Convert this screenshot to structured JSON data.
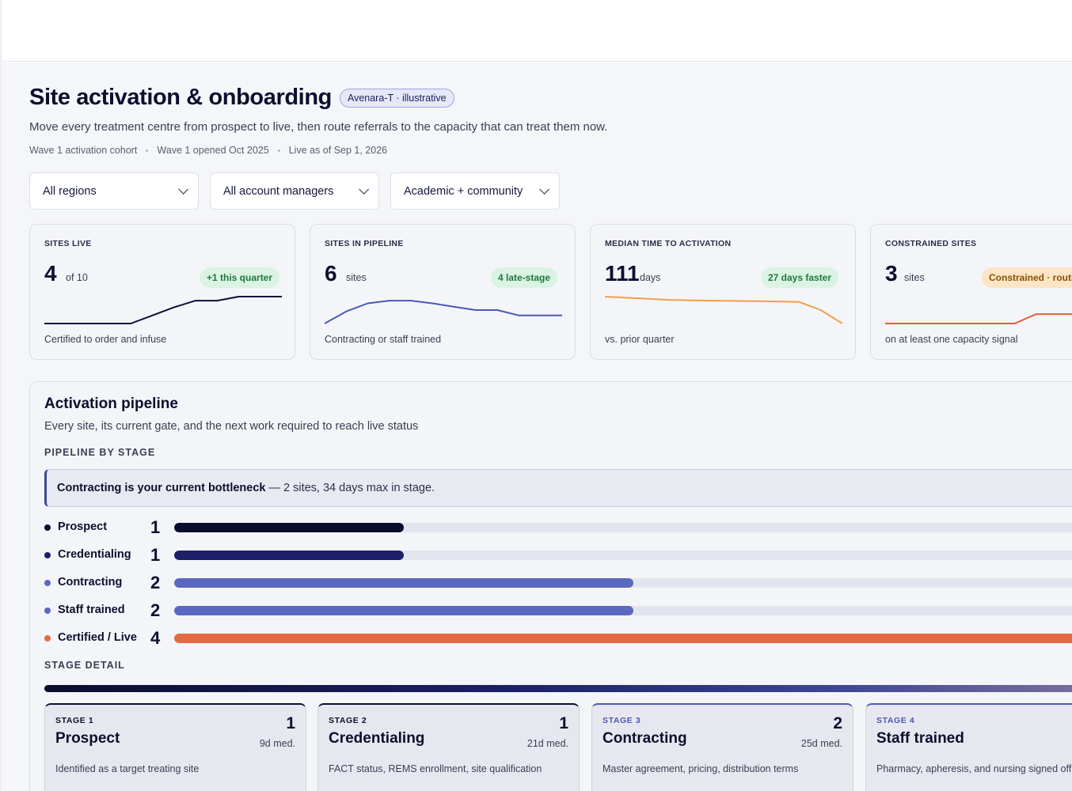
{
  "header": {
    "title": "Site activation & onboarding",
    "badge": "Avenara-T · illustrative",
    "subtitle": "Move every treatment centre from prospect to live, then route referrals to the capacity that can treat them now.",
    "meta": [
      "Wave 1 activation cohort",
      "Wave 1 opened Oct 2025",
      "Live as of Sep 1, 2026"
    ]
  },
  "filters": {
    "region": "All regions",
    "manager": "All account managers",
    "site_type": "Academic + community"
  },
  "kpis": [
    {
      "label": "SITES LIVE",
      "value": "4",
      "unit": "of 10",
      "pill": "+1 this quarter",
      "caption": "Certified to order and infuse",
      "color": "#0c0f3a",
      "trend": [
        0,
        0,
        0,
        0,
        0,
        0.3,
        0.6,
        0.85,
        0.85,
        1,
        1,
        1
      ]
    },
    {
      "label": "SITES IN PIPELINE",
      "value": "6",
      "unit": "sites",
      "pill": "4 late-stage",
      "caption": "Contracting or staff trained",
      "color": "#4a58b8",
      "trend": [
        0,
        0.45,
        0.75,
        0.85,
        0.85,
        0.75,
        0.62,
        0.5,
        0.5,
        0.3,
        0.3,
        0.3
      ]
    },
    {
      "label": "MEDIAN TIME TO ACTIVATION",
      "value": "111",
      "unit": "days",
      "pill": "27 days faster",
      "caption": "vs. prior quarter",
      "color": "#f0a04a",
      "trend": [
        1,
        0.96,
        0.92,
        0.88,
        0.86,
        0.85,
        0.84,
        0.83,
        0.82,
        0.8,
        0.5,
        0
      ]
    },
    {
      "label": "CONSTRAINED SITES",
      "value": "3",
      "unit": "sites",
      "pill": "Constrained · routing",
      "caption": "on at least one capacity signal",
      "color": "#e0603a",
      "trend": [
        0,
        0,
        0,
        0,
        0,
        0,
        0,
        0.35,
        0.35,
        0.35,
        0.8,
        0.8
      ]
    }
  ],
  "pipeline": {
    "title": "Activation pipeline",
    "subtitle": "Every site, its current gate, and the next work required to reach live status",
    "by_stage_label": "PIPELINE BY STAGE",
    "callout_bold": "Contracting is your current bottleneck",
    "callout_rest": " — 2 sites, 34 days max in stage.",
    "stages": [
      {
        "name": "Prospect",
        "count": 1,
        "fraction": 0.25,
        "color": "#0b0d2e"
      },
      {
        "name": "Credentialing",
        "count": 1,
        "fraction": 0.25,
        "color": "#1b2068"
      },
      {
        "name": "Contracting",
        "count": 2,
        "fraction": 0.5,
        "color": "#5b68c0"
      },
      {
        "name": "Staff trained",
        "count": 2,
        "fraction": 0.5,
        "color": "#5b68c0"
      },
      {
        "name": "Certified / Live",
        "count": 4,
        "fraction": 1.0,
        "color": "#e56a44"
      }
    ],
    "detail_label": "STAGE DETAIL",
    "detail_cards": [
      {
        "num": "STAGE 1",
        "title": "Prospect",
        "count": "1",
        "median": "9d med.",
        "desc": "Identified as a target treating site",
        "num_color": "#0c0f2e"
      },
      {
        "num": "STAGE 2",
        "title": "Credentialing",
        "count": "1",
        "median": "21d med.",
        "desc": "FACT status, REMS enrollment, site qualification",
        "num_color": "#0c0f2e"
      },
      {
        "num": "STAGE 3",
        "title": "Contracting",
        "count": "2",
        "median": "25d med.",
        "desc": "Master agreement, pricing, distribution terms",
        "num_color": "#4a58b8"
      },
      {
        "num": "STAGE 4",
        "title": "Staff trained",
        "count": "",
        "median": "",
        "desc": "Pharmacy, apheresis, and nursing signed off",
        "num_color": "#4a58b8"
      }
    ]
  }
}
